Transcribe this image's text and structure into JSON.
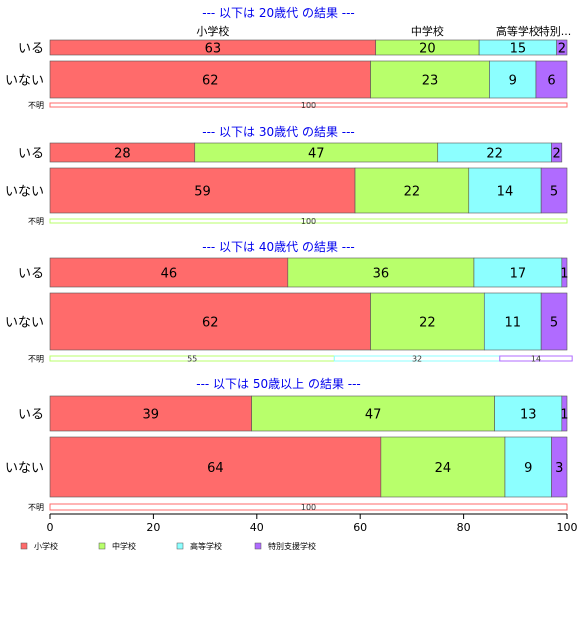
{
  "chart_data": {
    "type": "bar",
    "orientation": "horizontal",
    "stacked": "percent",
    "xlim": [
      0,
      100
    ],
    "xticks": [
      0,
      20,
      40,
      60,
      80,
      100
    ],
    "colors": [
      "#ff6b6b",
      "#b8ff6b",
      "#8cffff",
      "#b06bff"
    ],
    "categories": [
      "小学校",
      "中学校",
      "高等学校",
      "特別支援学校"
    ],
    "category_headers": [
      "小学校",
      "中学校",
      "高等学校",
      "特別..."
    ],
    "legend": {
      "position": "bottom-left",
      "items": [
        "小学校",
        "中学校",
        "高等学校",
        "特別支援学校"
      ]
    },
    "groups": [
      {
        "title": "--- 以下は 20歳代 の結果 ---",
        "rows": [
          {
            "label": "いる",
            "values": [
              63,
              20,
              15,
              2
            ]
          },
          {
            "label": "いない",
            "values": [
              62,
              23,
              9,
              6
            ]
          },
          {
            "label": "不明",
            "values": [
              100,
              0,
              0,
              0
            ],
            "thin": true
          }
        ]
      },
      {
        "title": "--- 以下は 30歳代 の結果 ---",
        "rows": [
          {
            "label": "いる",
            "values": [
              28,
              47,
              22,
              2
            ]
          },
          {
            "label": "いない",
            "values": [
              59,
              22,
              14,
              5
            ]
          },
          {
            "label": "不明",
            "values": [
              0,
              100,
              0,
              0
            ],
            "thin": true
          }
        ]
      },
      {
        "title": "--- 以下は 40歳代 の結果 ---",
        "rows": [
          {
            "label": "いる",
            "values": [
              46,
              36,
              17,
              1
            ]
          },
          {
            "label": "いない",
            "values": [
              62,
              22,
              11,
              5
            ]
          },
          {
            "label": "不明",
            "values": [
              0,
              55,
              32,
              14
            ],
            "thin": true
          }
        ]
      },
      {
        "title": "--- 以下は 50歳以上 の結果 ---",
        "rows": [
          {
            "label": "いる",
            "values": [
              39,
              47,
              13,
              1
            ]
          },
          {
            "label": "いない",
            "values": [
              64,
              24,
              9,
              3
            ]
          },
          {
            "label": "不明",
            "values": [
              100,
              0,
              0,
              0
            ],
            "thin": true
          }
        ]
      }
    ]
  }
}
